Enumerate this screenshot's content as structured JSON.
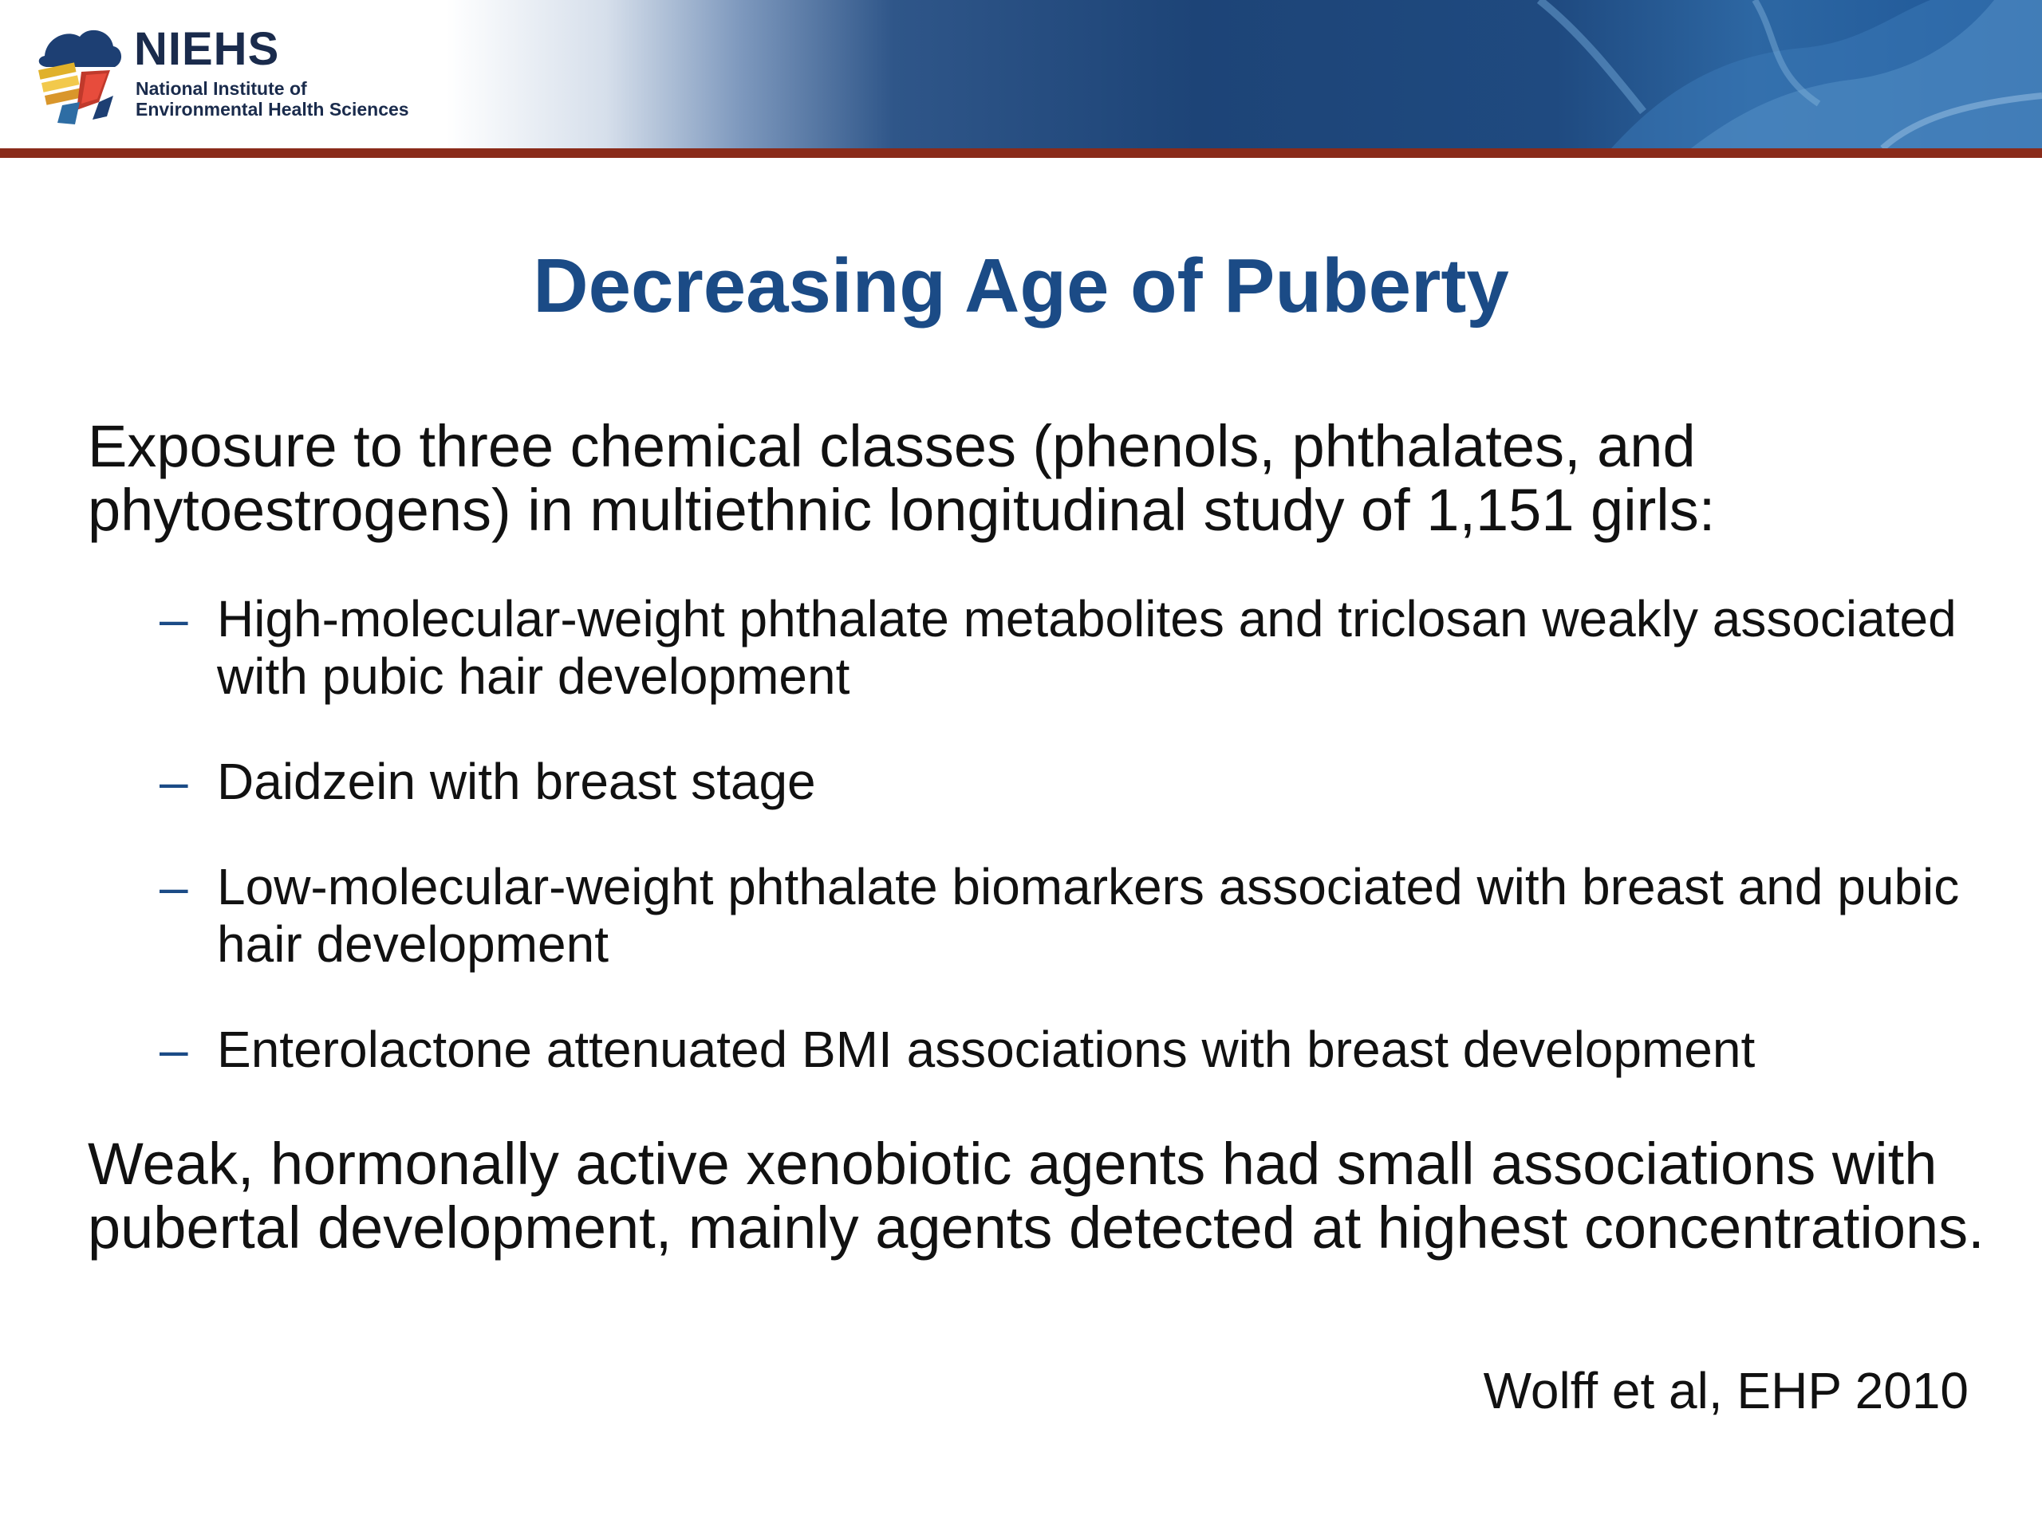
{
  "header": {
    "logo": {
      "acronym": "NIEHS",
      "name_line1": "National Institute of",
      "name_line2": "Environmental Health Sciences",
      "icon": "niehs-logo-mark"
    },
    "colors": {
      "banner_dark": "#1d4477",
      "rule": "#8a2b1a"
    }
  },
  "slide": {
    "title": "Decreasing Age of Puberty",
    "intro": "Exposure to three chemical classes (phenols, phthalates, and phytoestrogens) in multiethnic longitudinal study of 1,151 girls:",
    "bullets": [
      {
        "dash": "–",
        "text": "High-molecular-weight phthalate metabolites and triclosan weakly associated with pubic hair development"
      },
      {
        "dash": "–",
        "text": "Daidzein with breast stage"
      },
      {
        "dash": "–",
        "text": "Low-molecular-weight phthalate biomarkers associated with breast and pubic hair development"
      },
      {
        "dash": "–",
        "text": "Enterolactone attenuated BMI associations with breast development"
      }
    ],
    "conclusion": "Weak, hormonally active xenobiotic agents had small associations with pubertal development, mainly agents detected at highest concentrations.",
    "citation": "Wolff et al, EHP 2010",
    "title_color": "#1b4b86"
  }
}
